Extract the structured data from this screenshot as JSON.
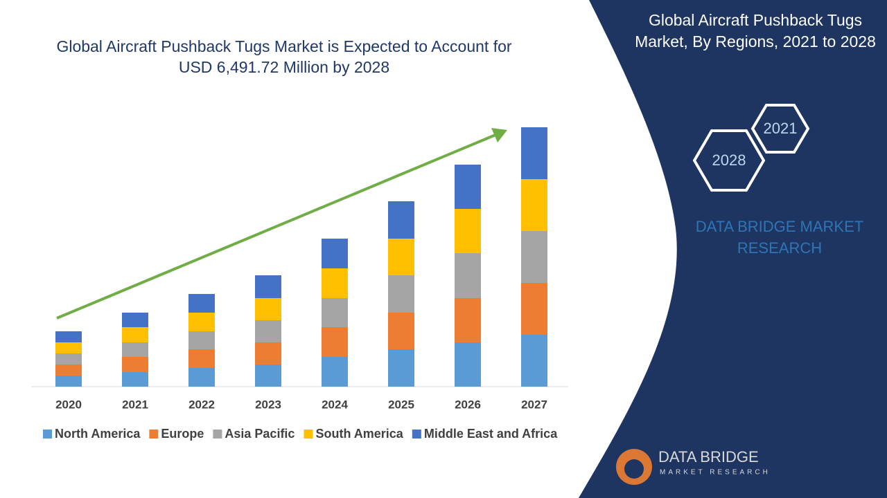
{
  "chart_data": {
    "type": "bar",
    "stacked": true,
    "title": "Global Aircraft Pushback Tugs Market is Expected to Account for USD 6,491.72 Million by 2028",
    "categories": [
      "2020",
      "2021",
      "2022",
      "2023",
      "2024",
      "2025",
      "2026",
      "2027"
    ],
    "series": [
      {
        "name": "North America",
        "color": "#5b9bd5",
        "values": [
          16,
          21,
          27,
          32,
          43,
          54,
          64,
          75
        ]
      },
      {
        "name": "Europe",
        "color": "#ed7d31",
        "values": [
          16,
          22,
          27,
          32,
          43,
          53,
          64,
          75
        ]
      },
      {
        "name": "Asia Pacific",
        "color": "#a5a5a5",
        "values": [
          16,
          21,
          26,
          32,
          42,
          54,
          65,
          75
        ]
      },
      {
        "name": "South America",
        "color": "#ffc000",
        "values": [
          16,
          22,
          27,
          32,
          43,
          53,
          64,
          75
        ]
      },
      {
        "name": "Middle East and Africa",
        "color": "#4472c4",
        "values": [
          16,
          21,
          27,
          33,
          43,
          54,
          64,
          75
        ]
      }
    ],
    "ylim": [
      0,
      380
    ]
  },
  "panel": {
    "title": "Global Aircraft Pushback Tugs Market, By Regions, 2021 to 2028",
    "hexagons": [
      "2021",
      "2028"
    ],
    "brand": "DATA BRIDGE MARKET RESEARCH",
    "logo": {
      "name": "DATA BRIDGE",
      "tagline": "MARKET RESEARCH"
    }
  }
}
